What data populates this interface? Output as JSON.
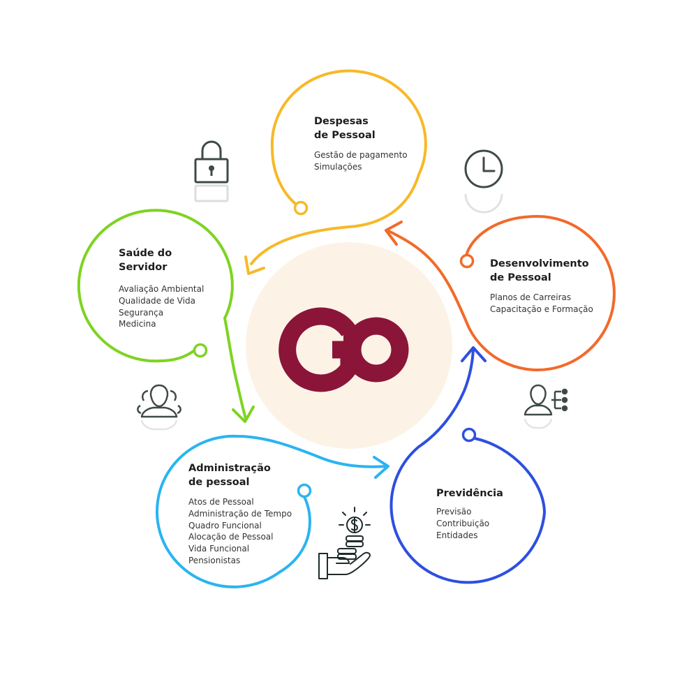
{
  "nodes": {
    "despesas": {
      "title": [
        "Despesas",
        "de Pessoal"
      ],
      "items": [
        "Gestão de pagamento",
        "Simulações"
      ],
      "color": "#F7B928"
    },
    "saude": {
      "title": [
        "Saúde do",
        "Servidor"
      ],
      "items": [
        "Avaliação Ambiental",
        "Qualidade de Vida",
        "Segurança",
        "Medicina"
      ],
      "color": "#7ED321"
    },
    "desenvolvimento": {
      "title": [
        "Desenvolvimento",
        "de Pessoal"
      ],
      "items": [
        "Planos de Carreiras",
        "Capacitação e Formação"
      ],
      "color": "#F26A2A"
    },
    "administracao": {
      "title": [
        "Administração",
        "de pessoal"
      ],
      "items": [
        "Atos de Pessoal",
        "Administração de Tempo",
        "Quadro Funcional",
        "Alocação de Pessoal",
        "Vida Funcional",
        "Pensionistas"
      ],
      "color": "#2BB4F0"
    },
    "previdencia": {
      "title": [
        "Previdência"
      ],
      "items": [
        "Previsão",
        "Contribuição",
        "Entidades"
      ],
      "color": "#2D4FE0"
    }
  },
  "center": {
    "logo_color": "#8A1538",
    "circle_color": "#FCF3E6"
  },
  "icons": [
    "lock-icon",
    "clock-icon",
    "users-icon",
    "user-network-icon",
    "money-hand-icon"
  ],
  "icon_color": "#3E4A45"
}
